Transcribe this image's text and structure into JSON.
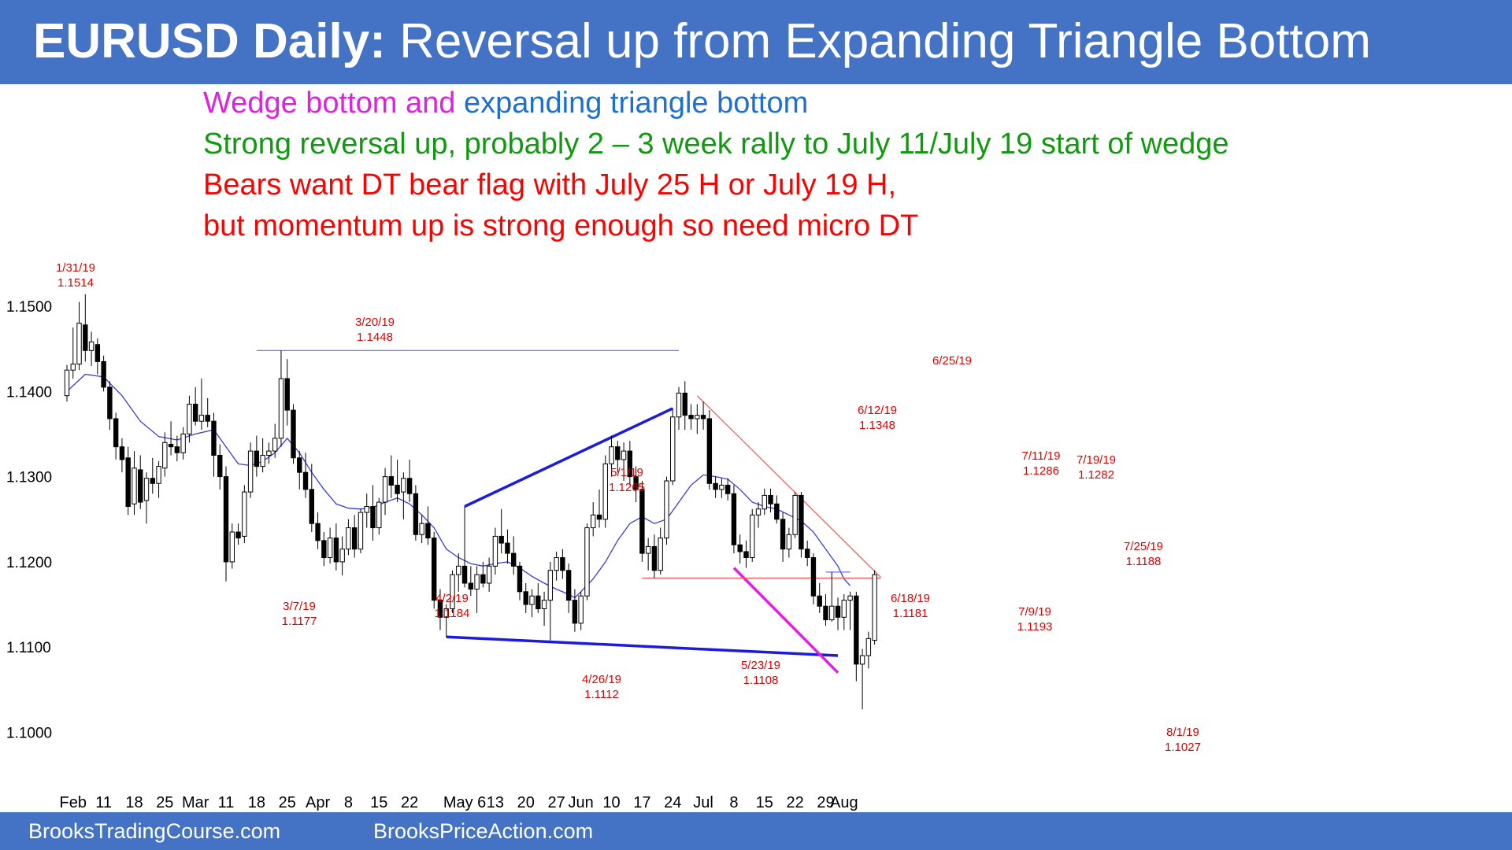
{
  "header": {
    "title_bold": "EURUSD Daily:",
    "title_rest": " Reversal up from Expanding Triangle Bottom"
  },
  "notes": {
    "line1_part1": "Wedge bottom and ",
    "line1_part2": "expanding triangle bottom",
    "line2": "Strong reversal up, probably 2 – 3 week rally to July 11/July 19 start of wedge",
    "line3": "Bears want DT bear flag with July 25 H or July 19 H,",
    "line4": "but momentum up is strong enough so need micro DT"
  },
  "footer": {
    "left": "BrooksTradingCourse.com",
    "right": "BrooksPriceAction.com"
  },
  "colors": {
    "header_bg": "#4472c4",
    "magenta": "#e020e0",
    "blue_text": "#1f6fd0",
    "green": "#109a10",
    "red": "#ff0000",
    "annotation": "#e00000",
    "trend_blue": "#1a1ae0",
    "ema": "#3a3ad8"
  },
  "chart_data": {
    "type": "candlestick",
    "title": "EURUSD Daily",
    "y_ticks": [
      "1.1500",
      "1.1400",
      "1.1300",
      "1.1200",
      "1.1100",
      "1.1000"
    ],
    "y_tick_values": [
      1.15,
      1.14,
      1.13,
      1.12,
      1.11,
      1.1
    ],
    "ylim": [
      1.096,
      1.1545
    ],
    "x_ticks": [
      {
        "label": "Feb",
        "i": 1
      },
      {
        "label": "11",
        "i": 6
      },
      {
        "label": "18",
        "i": 11
      },
      {
        "label": "25",
        "i": 16
      },
      {
        "label": "Mar",
        "i": 21
      },
      {
        "label": "11",
        "i": 26
      },
      {
        "label": "18",
        "i": 31
      },
      {
        "label": "25",
        "i": 36
      },
      {
        "label": "Apr",
        "i": 41
      },
      {
        "label": "8",
        "i": 46
      },
      {
        "label": "15",
        "i": 51
      },
      {
        "label": "22",
        "i": 56
      },
      {
        "label": "May 6",
        "i": 65
      },
      {
        "label": "13",
        "i": 70
      },
      {
        "label": "20",
        "i": 75
      },
      {
        "label": "27",
        "i": 80
      },
      {
        "label": "Jun",
        "i": 84
      },
      {
        "label": "10",
        "i": 89
      },
      {
        "label": "17",
        "i": 94
      },
      {
        "label": "24",
        "i": 99
      },
      {
        "label": "Jul",
        "i": 104
      },
      {
        "label": "8",
        "i": 109
      },
      {
        "label": "15",
        "i": 114
      },
      {
        "label": "22",
        "i": 119
      },
      {
        "label": "29",
        "i": 124
      },
      {
        "label": "Aug",
        "i": 127
      }
    ],
    "candles": [
      [
        1.1395,
        1.1431,
        1.1388,
        1.1425
      ],
      [
        1.1425,
        1.1475,
        1.1415,
        1.1432
      ],
      [
        1.1432,
        1.1505,
        1.1425,
        1.148
      ],
      [
        1.1478,
        1.1514,
        1.1435,
        1.1448
      ],
      [
        1.1448,
        1.147,
        1.143,
        1.1458
      ],
      [
        1.1455,
        1.1462,
        1.142,
        1.1435
      ],
      [
        1.1435,
        1.1442,
        1.14,
        1.1405
      ],
      [
        1.1405,
        1.1412,
        1.1355,
        1.1368
      ],
      [
        1.1368,
        1.1375,
        1.132,
        1.1335
      ],
      [
        1.1335,
        1.1345,
        1.1305,
        1.132
      ],
      [
        1.1322,
        1.1335,
        1.1255,
        1.1265
      ],
      [
        1.1268,
        1.133,
        1.1255,
        1.131
      ],
      [
        1.1308,
        1.1325,
        1.1262,
        1.127
      ],
      [
        1.1272,
        1.1305,
        1.1245,
        1.1298
      ],
      [
        1.1298,
        1.1322,
        1.128,
        1.1292
      ],
      [
        1.1292,
        1.1318,
        1.1275,
        1.1312
      ],
      [
        1.131,
        1.1352,
        1.13,
        1.134
      ],
      [
        1.1338,
        1.1365,
        1.1325,
        1.1335
      ],
      [
        1.1335,
        1.1348,
        1.1318,
        1.1328
      ],
      [
        1.1328,
        1.1358,
        1.132,
        1.135
      ],
      [
        1.135,
        1.1395,
        1.134,
        1.1385
      ],
      [
        1.1385,
        1.1405,
        1.136,
        1.1365
      ],
      [
        1.1365,
        1.1415,
        1.1355,
        1.1372
      ],
      [
        1.1372,
        1.1392,
        1.1358,
        1.1365
      ],
      [
        1.1365,
        1.1375,
        1.13,
        1.1325
      ],
      [
        1.1325,
        1.1338,
        1.1285,
        1.13
      ],
      [
        1.13,
        1.1312,
        1.1177,
        1.12
      ],
      [
        1.12,
        1.1245,
        1.1192,
        1.1235
      ],
      [
        1.1235,
        1.1245,
        1.122,
        1.1228
      ],
      [
        1.123,
        1.129,
        1.1222,
        1.1282
      ],
      [
        1.1282,
        1.134,
        1.1275,
        1.133
      ],
      [
        1.133,
        1.1348,
        1.13,
        1.1312
      ],
      [
        1.1312,
        1.1345,
        1.1305,
        1.1325
      ],
      [
        1.1325,
        1.134,
        1.1315,
        1.133
      ],
      [
        1.133,
        1.1362,
        1.1322,
        1.1345
      ],
      [
        1.1345,
        1.1448,
        1.1335,
        1.1415
      ],
      [
        1.1415,
        1.1438,
        1.136,
        1.1378
      ],
      [
        1.1378,
        1.1385,
        1.1315,
        1.1322
      ],
      [
        1.1322,
        1.133,
        1.1285,
        1.1305
      ],
      [
        1.1305,
        1.1328,
        1.1275,
        1.1285
      ],
      [
        1.1285,
        1.1315,
        1.1235,
        1.1245
      ],
      [
        1.1245,
        1.1258,
        1.1215,
        1.1225
      ],
      [
        1.1225,
        1.1235,
        1.1195,
        1.1205
      ],
      [
        1.1205,
        1.124,
        1.1198,
        1.1228
      ],
      [
        1.1228,
        1.1245,
        1.119,
        1.12
      ],
      [
        1.12,
        1.123,
        1.1184,
        1.1215
      ],
      [
        1.1215,
        1.125,
        1.1208,
        1.124
      ],
      [
        1.124,
        1.1255,
        1.1205,
        1.1215
      ],
      [
        1.1215,
        1.1262,
        1.121,
        1.1258
      ],
      [
        1.1258,
        1.128,
        1.124,
        1.1265
      ],
      [
        1.1265,
        1.129,
        1.1225,
        1.124
      ],
      [
        1.124,
        1.1275,
        1.1232,
        1.127
      ],
      [
        1.127,
        1.131,
        1.1255,
        1.13
      ],
      [
        1.13,
        1.1325,
        1.1275,
        1.129
      ],
      [
        1.129,
        1.132,
        1.127,
        1.128
      ],
      [
        1.1282,
        1.1305,
        1.125,
        1.1298
      ],
      [
        1.1298,
        1.132,
        1.127,
        1.128
      ],
      [
        1.128,
        1.129,
        1.1225,
        1.1232
      ],
      [
        1.1232,
        1.1255,
        1.1222,
        1.1245
      ],
      [
        1.1245,
        1.1265,
        1.122,
        1.1228
      ],
      [
        1.1228,
        1.1235,
        1.1145,
        1.1155
      ],
      [
        1.1155,
        1.1168,
        1.112,
        1.1135
      ],
      [
        1.1135,
        1.115,
        1.1112,
        1.1145
      ],
      [
        1.1145,
        1.119,
        1.114,
        1.1185
      ],
      [
        1.1185,
        1.121,
        1.1165,
        1.1195
      ],
      [
        1.1195,
        1.1265,
        1.117,
        1.1175
      ],
      [
        1.1175,
        1.1195,
        1.116,
        1.1168
      ],
      [
        1.1168,
        1.1195,
        1.114,
        1.1185
      ],
      [
        1.1185,
        1.12,
        1.117,
        1.1175
      ],
      [
        1.1175,
        1.1205,
        1.1165,
        1.1195
      ],
      [
        1.1195,
        1.124,
        1.1185,
        1.123
      ],
      [
        1.123,
        1.1262,
        1.121,
        1.1222
      ],
      [
        1.1222,
        1.1238,
        1.1198,
        1.121
      ],
      [
        1.121,
        1.123,
        1.1185,
        1.1195
      ],
      [
        1.1195,
        1.12,
        1.1155,
        1.1165
      ],
      [
        1.1165,
        1.1175,
        1.114,
        1.115
      ],
      [
        1.115,
        1.1168,
        1.1135,
        1.116
      ],
      [
        1.116,
        1.1175,
        1.114,
        1.1145
      ],
      [
        1.1145,
        1.1165,
        1.1125,
        1.1155
      ],
      [
        1.1155,
        1.12,
        1.1108,
        1.119
      ],
      [
        1.119,
        1.1212,
        1.1178,
        1.1205
      ],
      [
        1.1205,
        1.1215,
        1.118,
        1.119
      ],
      [
        1.119,
        1.1198,
        1.114,
        1.1155
      ],
      [
        1.1155,
        1.1168,
        1.1118,
        1.1128
      ],
      [
        1.1128,
        1.1165,
        1.112,
        1.116
      ],
      [
        1.116,
        1.1245,
        1.1155,
        1.124
      ],
      [
        1.124,
        1.127,
        1.123,
        1.1255
      ],
      [
        1.1255,
        1.1285,
        1.124,
        1.125
      ],
      [
        1.125,
        1.1325,
        1.124,
        1.1315
      ],
      [
        1.1315,
        1.1348,
        1.13,
        1.1335
      ],
      [
        1.1335,
        1.1342,
        1.1305,
        1.132
      ],
      [
        1.132,
        1.134,
        1.1295,
        1.133
      ],
      [
        1.133,
        1.1342,
        1.129,
        1.13
      ],
      [
        1.13,
        1.1312,
        1.127,
        1.1285
      ],
      [
        1.1285,
        1.1295,
        1.12,
        1.121
      ],
      [
        1.121,
        1.1228,
        1.119,
        1.1218
      ],
      [
        1.1218,
        1.1232,
        1.1181,
        1.119
      ],
      [
        1.119,
        1.124,
        1.1185,
        1.1228
      ],
      [
        1.1228,
        1.13,
        1.122,
        1.1295
      ],
      [
        1.1295,
        1.138,
        1.129,
        1.137
      ],
      [
        1.137,
        1.1405,
        1.1355,
        1.1398
      ],
      [
        1.1398,
        1.1412,
        1.1355,
        1.1372
      ],
      [
        1.1372,
        1.1385,
        1.1355,
        1.1368
      ],
      [
        1.1368,
        1.1385,
        1.135,
        1.1372
      ],
      [
        1.1372,
        1.1388,
        1.1355,
        1.1368
      ],
      [
        1.1368,
        1.1378,
        1.1285,
        1.1292
      ],
      [
        1.1292,
        1.13,
        1.1275,
        1.1285
      ],
      [
        1.1285,
        1.1298,
        1.1275,
        1.129
      ],
      [
        1.129,
        1.1298,
        1.1272,
        1.128
      ],
      [
        1.128,
        1.129,
        1.121,
        1.122
      ],
      [
        1.122,
        1.1232,
        1.1198,
        1.1212
      ],
      [
        1.1212,
        1.1225,
        1.1193,
        1.1205
      ],
      [
        1.1205,
        1.1262,
        1.12,
        1.1255
      ],
      [
        1.1255,
        1.127,
        1.124,
        1.1262
      ],
      [
        1.1262,
        1.1286,
        1.1255,
        1.1278
      ],
      [
        1.1278,
        1.1286,
        1.1258,
        1.1268
      ],
      [
        1.1268,
        1.1278,
        1.1245,
        1.125
      ],
      [
        1.125,
        1.1258,
        1.12,
        1.1215
      ],
      [
        1.1215,
        1.124,
        1.1205,
        1.1232
      ],
      [
        1.1232,
        1.1282,
        1.1228,
        1.1278
      ],
      [
        1.1278,
        1.1282,
        1.1205,
        1.1215
      ],
      [
        1.1215,
        1.1225,
        1.1195,
        1.1205
      ],
      [
        1.1205,
        1.121,
        1.115,
        1.116
      ],
      [
        1.116,
        1.1175,
        1.114,
        1.1148
      ],
      [
        1.1148,
        1.1162,
        1.1125,
        1.1132
      ],
      [
        1.1132,
        1.1188,
        1.113,
        1.1148
      ],
      [
        1.1148,
        1.1158,
        1.112,
        1.1135
      ],
      [
        1.1135,
        1.1162,
        1.112,
        1.1155
      ],
      [
        1.1155,
        1.1165,
        1.112,
        1.116
      ],
      [
        1.116,
        1.1165,
        1.106,
        1.108
      ],
      [
        1.108,
        1.1098,
        1.1027,
        1.109
      ],
      [
        1.109,
        1.1118,
        1.1075,
        1.111
      ],
      [
        1.1108,
        1.119,
        1.1103,
        1.1185
      ]
    ],
    "ema": [
      [
        0,
        1.14
      ],
      [
        3,
        1.142
      ],
      [
        6,
        1.1417
      ],
      [
        9,
        1.1395
      ],
      [
        12,
        1.1365
      ],
      [
        15,
        1.1347
      ],
      [
        18,
        1.1343
      ],
      [
        21,
        1.135
      ],
      [
        24,
        1.1355
      ],
      [
        26,
        1.1335
      ],
      [
        28,
        1.1315
      ],
      [
        30,
        1.1313
      ],
      [
        32,
        1.1318
      ],
      [
        34,
        1.1328
      ],
      [
        36,
        1.1345
      ],
      [
        38,
        1.1328
      ],
      [
        40,
        1.1305
      ],
      [
        42,
        1.1285
      ],
      [
        44,
        1.1268
      ],
      [
        46,
        1.1263
      ],
      [
        48,
        1.1262
      ],
      [
        50,
        1.1264
      ],
      [
        52,
        1.127
      ],
      [
        54,
        1.1275
      ],
      [
        56,
        1.1268
      ],
      [
        58,
        1.1255
      ],
      [
        60,
        1.124
      ],
      [
        62,
        1.1215
      ],
      [
        64,
        1.1205
      ],
      [
        66,
        1.1198
      ],
      [
        68,
        1.1195
      ],
      [
        70,
        1.1198
      ],
      [
        72,
        1.12
      ],
      [
        74,
        1.1193
      ],
      [
        76,
        1.1183
      ],
      [
        78,
        1.1175
      ],
      [
        80,
        1.1168
      ],
      [
        82,
        1.1162
      ],
      [
        83,
        1.1158
      ],
      [
        84,
        1.1165
      ],
      [
        86,
        1.118
      ],
      [
        88,
        1.12
      ],
      [
        90,
        1.1225
      ],
      [
        92,
        1.1245
      ],
      [
        94,
        1.1253
      ],
      [
        96,
        1.1245
      ],
      [
        98,
        1.125
      ],
      [
        100,
        1.127
      ],
      [
        102,
        1.129
      ],
      [
        104,
        1.1302
      ],
      [
        106,
        1.13
      ],
      [
        108,
        1.1297
      ],
      [
        110,
        1.1285
      ],
      [
        112,
        1.127
      ],
      [
        114,
        1.1265
      ],
      [
        116,
        1.1262
      ],
      [
        118,
        1.1255
      ],
      [
        120,
        1.1248
      ],
      [
        122,
        1.1235
      ],
      [
        124,
        1.1215
      ],
      [
        126,
        1.1195
      ],
      [
        127,
        1.118
      ],
      [
        128,
        1.1172
      ]
    ],
    "annotations": [
      {
        "date": "1/31/19",
        "price": "1.1514"
      },
      {
        "date": "3/20/19",
        "price": "1.1448"
      },
      {
        "date": "3/7/19",
        "price": "1.1177"
      },
      {
        "date": "4/2/19",
        "price": "1.1184"
      },
      {
        "date": "5/1/19",
        "price": "1.1265"
      },
      {
        "date": "4/26/19",
        "price": "1.1112"
      },
      {
        "date": "5/23/19",
        "price": "1.1108"
      },
      {
        "date": "6/12/19",
        "price": "1.1348"
      },
      {
        "date": "6/25/19",
        "price": ""
      },
      {
        "date": "6/18/19",
        "price": "1.1181"
      },
      {
        "date": "7/11/19",
        "price": "1.1286"
      },
      {
        "date": "7/19/19",
        "price": "1.1282"
      },
      {
        "date": "7/9/19",
        "price": "1.1193"
      },
      {
        "date": "7/25/19",
        "price": "1.1188"
      },
      {
        "date": "8/1/19",
        "price": "1.1027"
      }
    ],
    "lines": [
      {
        "kind": "resistance",
        "color": "#6f6fe8",
        "from": [
          31,
          1.1448
        ],
        "to": [
          100,
          1.1448
        ]
      },
      {
        "kind": "triangle-top",
        "color": "#1a1ae0",
        "from": [
          65,
          1.1265
        ],
        "to": [
          99,
          1.138
        ]
      },
      {
        "kind": "triangle-bottom",
        "color": "#1a1ae0",
        "from": [
          62,
          1.1112
        ],
        "to": [
          126,
          1.109
        ]
      },
      {
        "kind": "wedge",
        "color": "#e020e0",
        "from": [
          109,
          1.1193
        ],
        "to": [
          126,
          1.107
        ]
      },
      {
        "kind": "bear-trendline",
        "color": "#ff5050",
        "from": [
          103,
          1.1395
        ],
        "to": [
          133,
          1.1182
        ]
      },
      {
        "kind": "support",
        "color": "#ff5050",
        "from": [
          94,
          1.1181
        ],
        "to": [
          133,
          1.1181
        ]
      },
      {
        "kind": "jul25-high",
        "color": "#6f6fe8",
        "from": [
          124,
          1.1188
        ],
        "to": [
          128,
          1.1188
        ]
      }
    ]
  }
}
